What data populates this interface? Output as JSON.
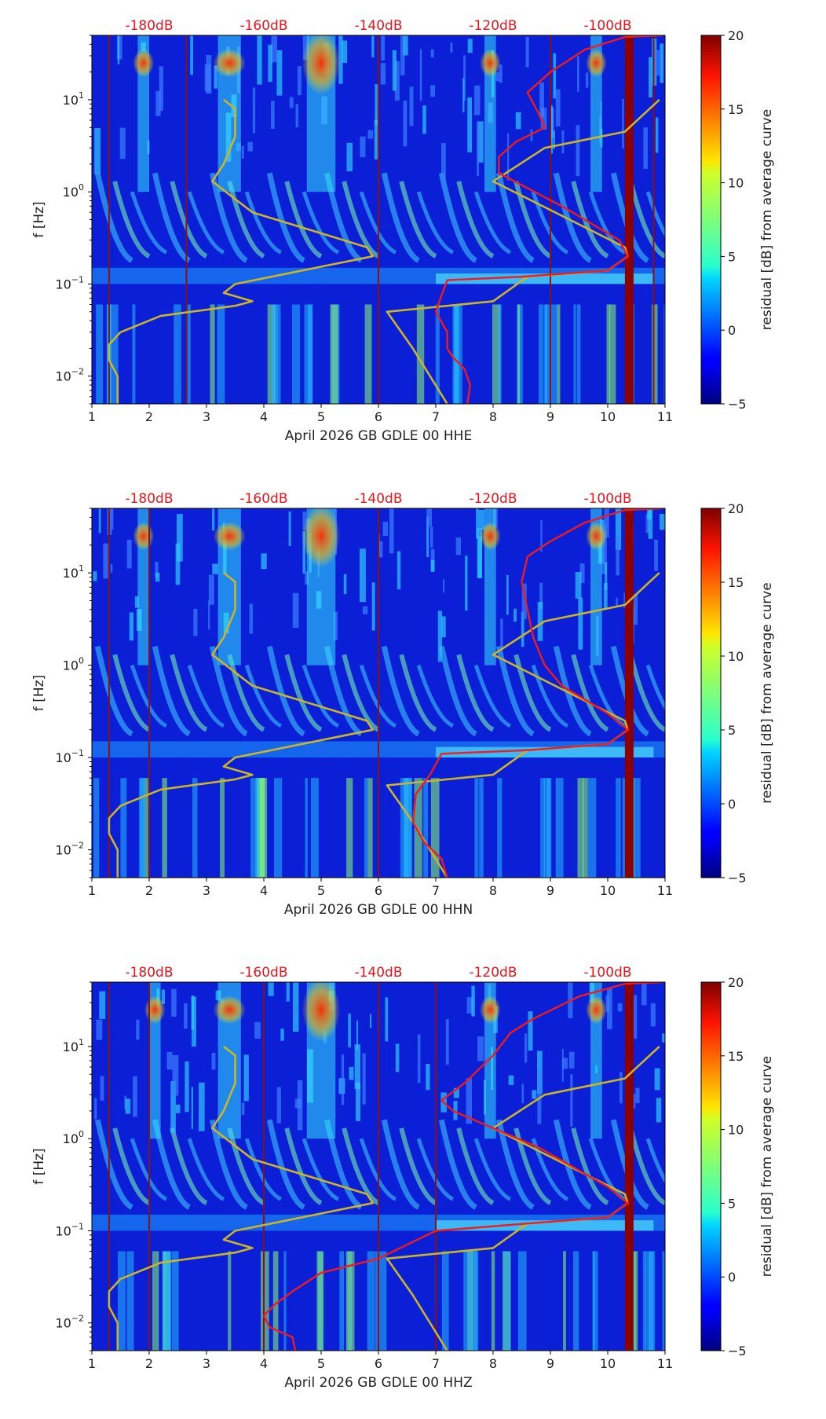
{
  "colors": {
    "db_label": "#e8141c",
    "psd_curve": "#ee1c1c",
    "model_curve": "#c9b42a",
    "vline": "#8b1010",
    "text": "#222222"
  },
  "colorbar": {
    "label": "residual [dB] from average curve",
    "min": -5,
    "max": 20,
    "ticks": [
      "20",
      "15",
      "10",
      "5",
      "0",
      "−5"
    ]
  },
  "chart_data": [
    {
      "type": "heatmap",
      "title": "",
      "xlabel": "April 2026 GB GDLE 00 HHE",
      "ylabel": "f [Hz]",
      "xlim": [
        1,
        11
      ],
      "ylim": [
        0.005,
        50
      ],
      "x_ticks": [
        "1",
        "2",
        "3",
        "4",
        "5",
        "6",
        "7",
        "8",
        "9",
        "10",
        "11"
      ],
      "y_ticks": [
        {
          "base": "10",
          "exp": "1",
          "value": 10
        },
        {
          "base": "10",
          "exp": "0",
          "value": 1
        },
        {
          "base": "10",
          "exp": "−1",
          "value": 0.1
        },
        {
          "base": "10",
          "exp": "−2",
          "value": 0.01
        }
      ],
      "db_scale_labels": [
        {
          "text": "-180dB",
          "x": 2
        },
        {
          "text": "-160dB",
          "x": 4
        },
        {
          "text": "-140dB",
          "x": 6
        },
        {
          "text": "-120dB",
          "x": 8
        },
        {
          "text": "-100dB",
          "x": 10
        }
      ],
      "vertical_lines": [
        1.3,
        2.65,
        6.0,
        9.0,
        10.8
      ],
      "thick_band": [
        10.3,
        10.45
      ],
      "hot_columns": [
        [
          4.75,
          5.25
        ],
        [
          3.2,
          3.6
        ],
        [
          7.85,
          8.05
        ],
        [
          9.7,
          9.9
        ],
        [
          1.8,
          2.0
        ]
      ],
      "model_curve": [
        {
          "x": 1.45,
          "f": 0.005
        },
        {
          "x": 1.45,
          "f": 0.01
        },
        {
          "x": 1.3,
          "f": 0.015
        },
        {
          "x": 1.3,
          "f": 0.022
        },
        {
          "x": 1.5,
          "f": 0.03
        },
        {
          "x": 2.2,
          "f": 0.045
        },
        {
          "x": 3.5,
          "f": 0.058
        },
        {
          "x": 3.8,
          "f": 0.065
        },
        {
          "x": 3.3,
          "f": 0.08
        },
        {
          "x": 3.5,
          "f": 0.1
        },
        {
          "x": 5.9,
          "f": 0.2
        },
        {
          "x": 5.8,
          "f": 0.25
        },
        {
          "x": 3.8,
          "f": 0.6
        },
        {
          "x": 3.1,
          "f": 1.3
        },
        {
          "x": 3.3,
          "f": 2
        },
        {
          "x": 3.5,
          "f": 4
        },
        {
          "x": 3.5,
          "f": 8
        },
        {
          "x": 3.3,
          "f": 10
        }
      ],
      "model_curve_2": [
        {
          "x": 7.2,
          "f": 0.005
        },
        {
          "x": 6.6,
          "f": 0.02
        },
        {
          "x": 6.15,
          "f": 0.05
        },
        {
          "x": 8.0,
          "f": 0.065
        },
        {
          "x": 8.6,
          "f": 0.12
        },
        {
          "x": 10.0,
          "f": 0.14
        },
        {
          "x": 10.35,
          "f": 0.2
        },
        {
          "x": 10.3,
          "f": 0.25
        },
        {
          "x": 8.0,
          "f": 1.3
        },
        {
          "x": 8.9,
          "f": 3
        },
        {
          "x": 10.3,
          "f": 4.5
        },
        {
          "x": 10.9,
          "f": 10
        }
      ],
      "psd_curve": [
        {
          "x": 7.55,
          "f": 0.005
        },
        {
          "x": 7.6,
          "f": 0.008
        },
        {
          "x": 7.5,
          "f": 0.012
        },
        {
          "x": 7.3,
          "f": 0.016
        },
        {
          "x": 7.2,
          "f": 0.02
        },
        {
          "x": 7.2,
          "f": 0.03
        },
        {
          "x": 7.0,
          "f": 0.05
        },
        {
          "x": 7.1,
          "f": 0.075
        },
        {
          "x": 7.2,
          "f": 0.11
        },
        {
          "x": 8.5,
          "f": 0.12
        },
        {
          "x": 10.0,
          "f": 0.14
        },
        {
          "x": 10.35,
          "f": 0.2
        },
        {
          "x": 10.2,
          "f": 0.3
        },
        {
          "x": 9.2,
          "f": 0.7
        },
        {
          "x": 8.1,
          "f": 1.6
        },
        {
          "x": 8.1,
          "f": 2.4
        },
        {
          "x": 8.4,
          "f": 3.5
        },
        {
          "x": 8.9,
          "f": 5
        },
        {
          "x": 8.8,
          "f": 7
        },
        {
          "x": 8.6,
          "f": 12
        },
        {
          "x": 9.0,
          "f": 20
        },
        {
          "x": 9.6,
          "f": 35
        },
        {
          "x": 10.3,
          "f": 48
        },
        {
          "x": 10.95,
          "f": 50
        }
      ]
    },
    {
      "type": "heatmap",
      "title": "",
      "xlabel": "April 2026 GB GDLE 00 HHN",
      "ylabel": "f [Hz]",
      "xlim": [
        1,
        11
      ],
      "ylim": [
        0.005,
        50
      ],
      "x_ticks": [
        "1",
        "2",
        "3",
        "4",
        "5",
        "6",
        "7",
        "8",
        "9",
        "10",
        "11"
      ],
      "y_ticks": [
        {
          "base": "10",
          "exp": "1",
          "value": 10
        },
        {
          "base": "10",
          "exp": "0",
          "value": 1
        },
        {
          "base": "10",
          "exp": "−1",
          "value": 0.1
        },
        {
          "base": "10",
          "exp": "−2",
          "value": 0.01
        }
      ],
      "db_scale_labels": [
        {
          "text": "-180dB",
          "x": 2
        },
        {
          "text": "-160dB",
          "x": 4
        },
        {
          "text": "-140dB",
          "x": 6
        },
        {
          "text": "-120dB",
          "x": 8
        },
        {
          "text": "-100dB",
          "x": 10
        }
      ],
      "vertical_lines": [
        1.3,
        2.0,
        6.0
      ],
      "thick_band": [
        10.3,
        10.45
      ],
      "hot_columns": [
        [
          4.75,
          5.25
        ],
        [
          3.2,
          3.6
        ],
        [
          7.85,
          8.05
        ],
        [
          9.7,
          9.9
        ],
        [
          1.8,
          2.0
        ]
      ],
      "model_curve": [
        {
          "x": 1.45,
          "f": 0.005
        },
        {
          "x": 1.45,
          "f": 0.01
        },
        {
          "x": 1.3,
          "f": 0.015
        },
        {
          "x": 1.3,
          "f": 0.022
        },
        {
          "x": 1.5,
          "f": 0.03
        },
        {
          "x": 2.2,
          "f": 0.045
        },
        {
          "x": 3.5,
          "f": 0.058
        },
        {
          "x": 3.8,
          "f": 0.065
        },
        {
          "x": 3.3,
          "f": 0.08
        },
        {
          "x": 3.5,
          "f": 0.1
        },
        {
          "x": 5.9,
          "f": 0.2
        },
        {
          "x": 5.8,
          "f": 0.25
        },
        {
          "x": 3.8,
          "f": 0.6
        },
        {
          "x": 3.1,
          "f": 1.3
        },
        {
          "x": 3.3,
          "f": 2
        },
        {
          "x": 3.5,
          "f": 4
        },
        {
          "x": 3.5,
          "f": 8
        },
        {
          "x": 3.3,
          "f": 10
        }
      ],
      "model_curve_2": [
        {
          "x": 7.2,
          "f": 0.005
        },
        {
          "x": 6.6,
          "f": 0.02
        },
        {
          "x": 6.15,
          "f": 0.05
        },
        {
          "x": 8.0,
          "f": 0.065
        },
        {
          "x": 8.6,
          "f": 0.12
        },
        {
          "x": 10.0,
          "f": 0.14
        },
        {
          "x": 10.35,
          "f": 0.2
        },
        {
          "x": 10.3,
          "f": 0.25
        },
        {
          "x": 8.0,
          "f": 1.3
        },
        {
          "x": 8.9,
          "f": 3
        },
        {
          "x": 10.3,
          "f": 4.5
        },
        {
          "x": 10.9,
          "f": 10
        }
      ],
      "psd_curve": [
        {
          "x": 7.2,
          "f": 0.005
        },
        {
          "x": 7.1,
          "f": 0.008
        },
        {
          "x": 6.8,
          "f": 0.012
        },
        {
          "x": 6.6,
          "f": 0.02
        },
        {
          "x": 6.65,
          "f": 0.04
        },
        {
          "x": 6.9,
          "f": 0.065
        },
        {
          "x": 7.1,
          "f": 0.11
        },
        {
          "x": 8.6,
          "f": 0.12
        },
        {
          "x": 10.0,
          "f": 0.14
        },
        {
          "x": 10.35,
          "f": 0.2
        },
        {
          "x": 10.0,
          "f": 0.3
        },
        {
          "x": 9.2,
          "f": 0.6
        },
        {
          "x": 8.9,
          "f": 1.0
        },
        {
          "x": 8.7,
          "f": 2.0
        },
        {
          "x": 8.6,
          "f": 4
        },
        {
          "x": 8.5,
          "f": 8
        },
        {
          "x": 8.6,
          "f": 15
        },
        {
          "x": 9.0,
          "f": 22
        },
        {
          "x": 9.6,
          "f": 35
        },
        {
          "x": 10.3,
          "f": 48
        },
        {
          "x": 10.95,
          "f": 50
        }
      ]
    },
    {
      "type": "heatmap",
      "title": "",
      "xlabel": "April 2026 GB GDLE 00 HHZ",
      "ylabel": "f [Hz]",
      "xlim": [
        1,
        11
      ],
      "ylim": [
        0.005,
        50
      ],
      "x_ticks": [
        "1",
        "2",
        "3",
        "4",
        "5",
        "6",
        "7",
        "8",
        "9",
        "10",
        "11"
      ],
      "y_ticks": [
        {
          "base": "10",
          "exp": "1",
          "value": 10
        },
        {
          "base": "10",
          "exp": "0",
          "value": 1
        },
        {
          "base": "10",
          "exp": "−1",
          "value": 0.1
        },
        {
          "base": "10",
          "exp": "−2",
          "value": 0.01
        }
      ],
      "db_scale_labels": [
        {
          "text": "-180dB",
          "x": 2
        },
        {
          "text": "-160dB",
          "x": 4
        },
        {
          "text": "-140dB",
          "x": 6
        },
        {
          "text": "-120dB",
          "x": 8
        },
        {
          "text": "-100dB",
          "x": 10
        }
      ],
      "vertical_lines": [
        1.3,
        2.0,
        4.0,
        6.0,
        7.0
      ],
      "thick_band": [
        10.3,
        10.45
      ],
      "hot_columns": [
        [
          4.75,
          5.25
        ],
        [
          3.2,
          3.6
        ],
        [
          7.85,
          8.05
        ],
        [
          9.7,
          9.9
        ],
        [
          2.0,
          2.2
        ]
      ],
      "model_curve": [
        {
          "x": 1.45,
          "f": 0.005
        },
        {
          "x": 1.45,
          "f": 0.01
        },
        {
          "x": 1.3,
          "f": 0.015
        },
        {
          "x": 1.3,
          "f": 0.022
        },
        {
          "x": 1.5,
          "f": 0.03
        },
        {
          "x": 2.2,
          "f": 0.045
        },
        {
          "x": 3.5,
          "f": 0.058
        },
        {
          "x": 3.8,
          "f": 0.065
        },
        {
          "x": 3.3,
          "f": 0.08
        },
        {
          "x": 3.5,
          "f": 0.1
        },
        {
          "x": 5.9,
          "f": 0.2
        },
        {
          "x": 5.8,
          "f": 0.25
        },
        {
          "x": 3.8,
          "f": 0.6
        },
        {
          "x": 3.1,
          "f": 1.3
        },
        {
          "x": 3.3,
          "f": 2
        },
        {
          "x": 3.5,
          "f": 4
        },
        {
          "x": 3.5,
          "f": 8
        },
        {
          "x": 3.3,
          "f": 10
        }
      ],
      "model_curve_2": [
        {
          "x": 7.2,
          "f": 0.005
        },
        {
          "x": 6.6,
          "f": 0.02
        },
        {
          "x": 6.15,
          "f": 0.05
        },
        {
          "x": 8.0,
          "f": 0.065
        },
        {
          "x": 8.6,
          "f": 0.12
        },
        {
          "x": 10.0,
          "f": 0.14
        },
        {
          "x": 10.35,
          "f": 0.2
        },
        {
          "x": 10.3,
          "f": 0.25
        },
        {
          "x": 8.0,
          "f": 1.3
        },
        {
          "x": 8.9,
          "f": 3
        },
        {
          "x": 10.3,
          "f": 4.5
        },
        {
          "x": 10.9,
          "f": 10
        }
      ],
      "psd_curve": [
        {
          "x": 4.55,
          "f": 0.005
        },
        {
          "x": 4.5,
          "f": 0.007
        },
        {
          "x": 4.1,
          "f": 0.009
        },
        {
          "x": 4.0,
          "f": 0.012
        },
        {
          "x": 4.2,
          "f": 0.016
        },
        {
          "x": 4.5,
          "f": 0.022
        },
        {
          "x": 5.0,
          "f": 0.035
        },
        {
          "x": 6.0,
          "f": 0.05
        },
        {
          "x": 7.0,
          "f": 0.1
        },
        {
          "x": 8.6,
          "f": 0.12
        },
        {
          "x": 10.0,
          "f": 0.14
        },
        {
          "x": 10.35,
          "f": 0.2
        },
        {
          "x": 10.0,
          "f": 0.3
        },
        {
          "x": 8.8,
          "f": 0.8
        },
        {
          "x": 8.0,
          "f": 1.3
        },
        {
          "x": 7.3,
          "f": 2.0
        },
        {
          "x": 7.1,
          "f": 2.6
        },
        {
          "x": 7.5,
          "f": 4
        },
        {
          "x": 8.0,
          "f": 8
        },
        {
          "x": 8.3,
          "f": 14
        },
        {
          "x": 8.7,
          "f": 20
        },
        {
          "x": 9.5,
          "f": 35
        },
        {
          "x": 10.3,
          "f": 48
        },
        {
          "x": 10.95,
          "f": 50
        }
      ]
    }
  ]
}
